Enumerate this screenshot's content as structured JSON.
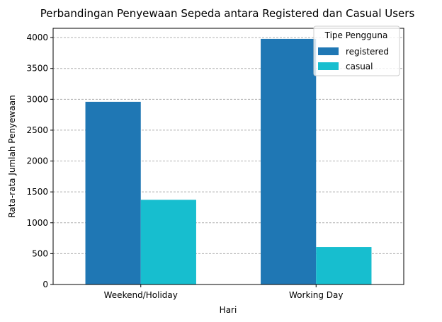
{
  "chart_data": {
    "type": "bar",
    "title": "Perbandingan Penyewaan Sepeda antara Registered dan Casual Users",
    "xlabel": "Hari",
    "ylabel": "Rata-rata Jumlah Penyewaan",
    "categories": [
      "Weekend/Holiday",
      "Working Day"
    ],
    "series": [
      {
        "name": "registered",
        "color": "#1f77b4",
        "values": [
          2959,
          3979
        ]
      },
      {
        "name": "casual",
        "color": "#17becf",
        "values": [
          1372,
          607
        ]
      }
    ],
    "ylim": [
      0,
      4150
    ],
    "yticks": [
      0,
      500,
      1000,
      1500,
      2000,
      2500,
      3000,
      3500,
      4000
    ],
    "grid": "horizontal dashed",
    "legend": {
      "title": "Tipe Pengguna",
      "placement": "top-right"
    }
  }
}
